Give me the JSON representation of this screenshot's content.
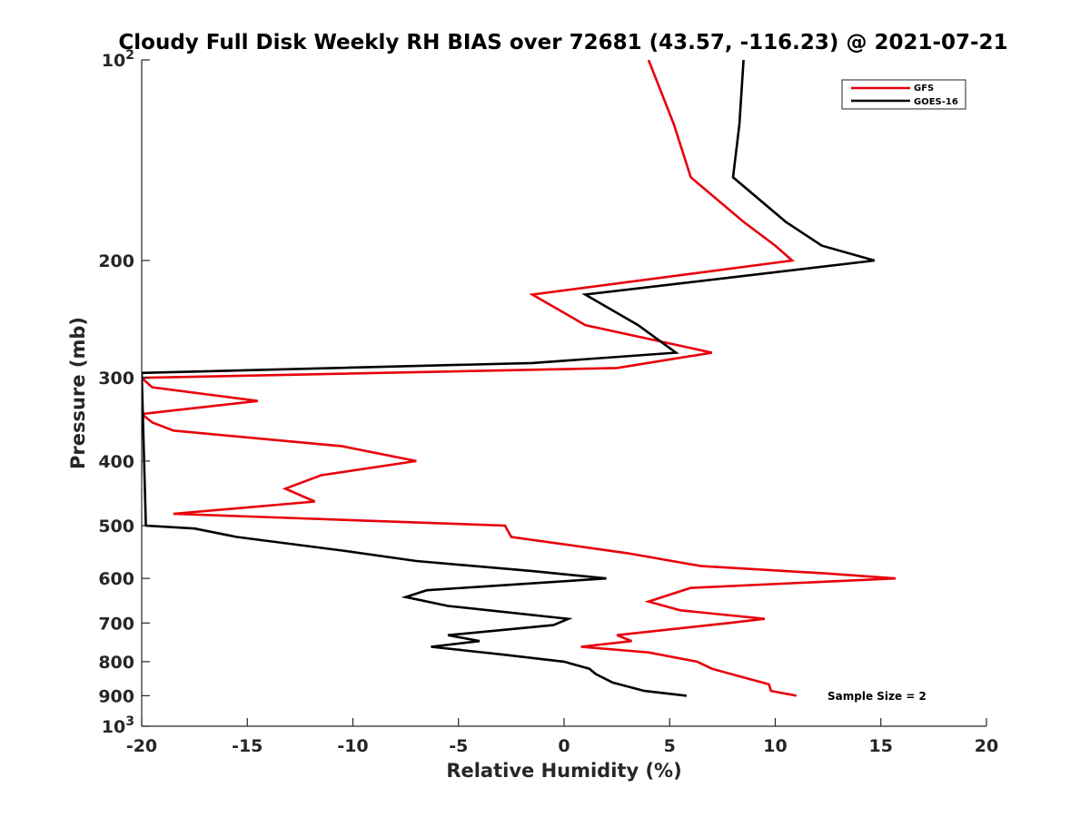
{
  "chart_data": {
    "type": "line",
    "title": "Cloudy Full Disk Weekly RH BIAS over 72681 (43.57, -116.23) @ 2021-07-21",
    "xlabel": "Relative Humidity (%)",
    "ylabel": "Pressure (mb)",
    "xlim": [
      -20,
      20
    ],
    "ylim": [
      100,
      1000
    ],
    "y_scale": "log",
    "y_reversed": true,
    "grid": false,
    "legend_position": "top-right",
    "x_ticks": [
      "-20",
      "-15",
      "-10",
      "-5",
      "0",
      "5",
      "10",
      "15",
      "20"
    ],
    "x_tick_values": [
      -20,
      -15,
      -10,
      -5,
      0,
      5,
      10,
      15,
      20
    ],
    "y_ticks": [
      {
        "value": 100,
        "base": "10",
        "exp": "2"
      },
      {
        "value": 200,
        "label": "200"
      },
      {
        "value": 300,
        "label": "300"
      },
      {
        "value": 400,
        "label": "400"
      },
      {
        "value": 500,
        "label": "500"
      },
      {
        "value": 600,
        "label": "600"
      },
      {
        "value": 700,
        "label": "700"
      },
      {
        "value": 800,
        "label": "800"
      },
      {
        "value": 900,
        "label": "900"
      },
      {
        "value": 1000,
        "base": "10",
        "exp": "3"
      }
    ],
    "annotation": "Sample Size = 2",
    "series": [
      {
        "name": "GFS",
        "color": "#e8000b",
        "points": [
          {
            "x": 4.0,
            "y": 100
          },
          {
            "x": 5.2,
            "y": 125
          },
          {
            "x": 6.0,
            "y": 150
          },
          {
            "x": 8.5,
            "y": 175
          },
          {
            "x": 10.0,
            "y": 190
          },
          {
            "x": 10.8,
            "y": 200
          },
          {
            "x": -1.5,
            "y": 225
          },
          {
            "x": 1.0,
            "y": 250
          },
          {
            "x": 7.0,
            "y": 275
          },
          {
            "x": 2.5,
            "y": 290
          },
          {
            "x": -20.0,
            "y": 300
          },
          {
            "x": -19.5,
            "y": 310
          },
          {
            "x": -14.5,
            "y": 325
          },
          {
            "x": -20.0,
            "y": 340
          },
          {
            "x": -19.5,
            "y": 350
          },
          {
            "x": -18.5,
            "y": 360
          },
          {
            "x": -10.5,
            "y": 380
          },
          {
            "x": -7.0,
            "y": 400
          },
          {
            "x": -11.5,
            "y": 420
          },
          {
            "x": -13.2,
            "y": 440
          },
          {
            "x": -11.8,
            "y": 460
          },
          {
            "x": -18.5,
            "y": 480
          },
          {
            "x": -2.8,
            "y": 500
          },
          {
            "x": -2.5,
            "y": 520
          },
          {
            "x": 3.0,
            "y": 550
          },
          {
            "x": 6.5,
            "y": 575
          },
          {
            "x": 12.5,
            "y": 590
          },
          {
            "x": 15.7,
            "y": 600
          },
          {
            "x": 6.0,
            "y": 620
          },
          {
            "x": 4.0,
            "y": 650
          },
          {
            "x": 5.5,
            "y": 670
          },
          {
            "x": 9.5,
            "y": 690
          },
          {
            "x": 7.8,
            "y": 700
          },
          {
            "x": 2.5,
            "y": 730
          },
          {
            "x": 3.2,
            "y": 745
          },
          {
            "x": 0.8,
            "y": 760
          },
          {
            "x": 4.0,
            "y": 775
          },
          {
            "x": 6.3,
            "y": 800
          },
          {
            "x": 7.0,
            "y": 820
          },
          {
            "x": 8.5,
            "y": 845
          },
          {
            "x": 9.7,
            "y": 865
          },
          {
            "x": 9.8,
            "y": 885
          },
          {
            "x": 11.0,
            "y": 900
          }
        ]
      },
      {
        "name": "GOES-16",
        "color": "#000000",
        "points": [
          {
            "x": 8.5,
            "y": 100
          },
          {
            "x": 8.3,
            "y": 125
          },
          {
            "x": 8.0,
            "y": 150
          },
          {
            "x": 10.5,
            "y": 175
          },
          {
            "x": 12.2,
            "y": 190
          },
          {
            "x": 14.7,
            "y": 200
          },
          {
            "x": 1.0,
            "y": 225
          },
          {
            "x": 3.5,
            "y": 250
          },
          {
            "x": 5.3,
            "y": 275
          },
          {
            "x": -1.5,
            "y": 285
          },
          {
            "x": -20.0,
            "y": 295
          },
          {
            "x": -19.8,
            "y": 500
          },
          {
            "x": -17.5,
            "y": 505
          },
          {
            "x": -15.5,
            "y": 520
          },
          {
            "x": -10.5,
            "y": 545
          },
          {
            "x": -7.0,
            "y": 565
          },
          {
            "x": -1.5,
            "y": 585
          },
          {
            "x": 2.0,
            "y": 600
          },
          {
            "x": -6.5,
            "y": 625
          },
          {
            "x": -7.5,
            "y": 640
          },
          {
            "x": -5.5,
            "y": 660
          },
          {
            "x": 0.2,
            "y": 690
          },
          {
            "x": -0.5,
            "y": 705
          },
          {
            "x": -5.5,
            "y": 730
          },
          {
            "x": -4.0,
            "y": 745
          },
          {
            "x": -6.3,
            "y": 760
          },
          {
            "x": -3.0,
            "y": 780
          },
          {
            "x": 0.0,
            "y": 800
          },
          {
            "x": 1.2,
            "y": 820
          },
          {
            "x": 1.5,
            "y": 835
          },
          {
            "x": 2.3,
            "y": 860
          },
          {
            "x": 3.8,
            "y": 885
          },
          {
            "x": 5.8,
            "y": 900
          }
        ]
      }
    ]
  }
}
